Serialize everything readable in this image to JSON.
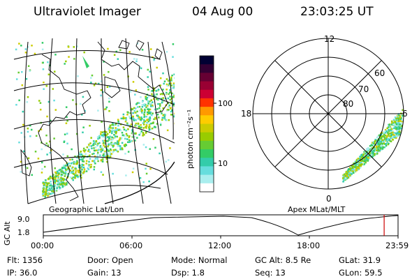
{
  "header": {
    "title": "Ultraviolet Imager",
    "date": "04 Aug 00",
    "time": "23:03:25 UT"
  },
  "colorbar": {
    "unit": "photon cm⁻²s⁻¹",
    "ticks": [
      "100",
      "10"
    ],
    "colors": [
      "#000033",
      "#330033",
      "#660033",
      "#990033",
      "#cc0033",
      "#ff3300",
      "#ff9900",
      "#ffcc00",
      "#cccc00",
      "#99cc00",
      "#66cc33",
      "#33cc66",
      "#33ccaa",
      "#66dddd",
      "#aaeeee",
      "#ffffff"
    ]
  },
  "geo_map": {
    "label": "Geographic Lat/Lon"
  },
  "polar_plot": {
    "label": "Apex MLat/MLT",
    "mlt_labels": {
      "top": "12",
      "left": "18",
      "right": "6",
      "bottom": "0"
    },
    "lat_labels": [
      "60",
      "70",
      "80"
    ]
  },
  "altitude_plot": {
    "ylabel": "GC Alt",
    "yticks": [
      "9.0",
      "1.8"
    ],
    "xticks": [
      "00:00",
      "06:00",
      "12:00",
      "18:00",
      "23:59"
    ],
    "marker_time_hours": 23.06,
    "marker_color": "#cc0000"
  },
  "info": {
    "flt": "Flt: 1356",
    "ip": "IP: 36.0",
    "door": "Door: Open",
    "gain": "Gain: 13",
    "mode": "Mode: Normal",
    "dsp": "Dsp:     1.8",
    "gcalt": "GC Alt: 8.5 Re",
    "seq": "Seq: 13",
    "glat": "GLat:  31.9",
    "glon": "GLon:  59.5"
  }
}
